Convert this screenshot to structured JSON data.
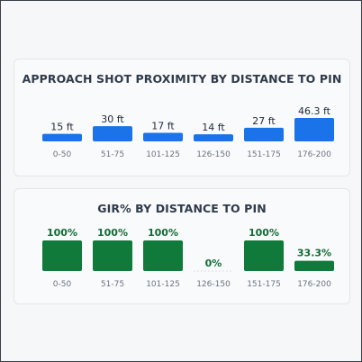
{
  "chart_data": [
    {
      "type": "bar",
      "title": "APPROACH SHOT PROXIMITY BY DISTANCE TO PIN",
      "categories": [
        "0-50",
        "51-75",
        "101-125",
        "126-150",
        "151-175",
        "176-200"
      ],
      "values": [
        15,
        30,
        17,
        14,
        27,
        46.3
      ],
      "value_labels": [
        "15 ft",
        "30 ft",
        "17 ft",
        "14 ft",
        "27 ft",
        "46.3 ft"
      ],
      "ylim": [
        0,
        46.3
      ],
      "colors": {
        "bar": "#1a73e8",
        "value_text": "#1f2a38"
      }
    },
    {
      "type": "bar",
      "title": "GIR% BY DISTANCE TO PIN",
      "categories": [
        "0-50",
        "51-75",
        "101-125",
        "126-150",
        "151-175",
        "176-200"
      ],
      "values": [
        100,
        100,
        100,
        0,
        100,
        33.3
      ],
      "value_labels": [
        "100%",
        "100%",
        "100%",
        "0%",
        "100%",
        "33.3%"
      ],
      "ylim": [
        0,
        100
      ],
      "colors": {
        "bar": "#0f7a3a",
        "value_text": "#0f6b32"
      }
    }
  ]
}
